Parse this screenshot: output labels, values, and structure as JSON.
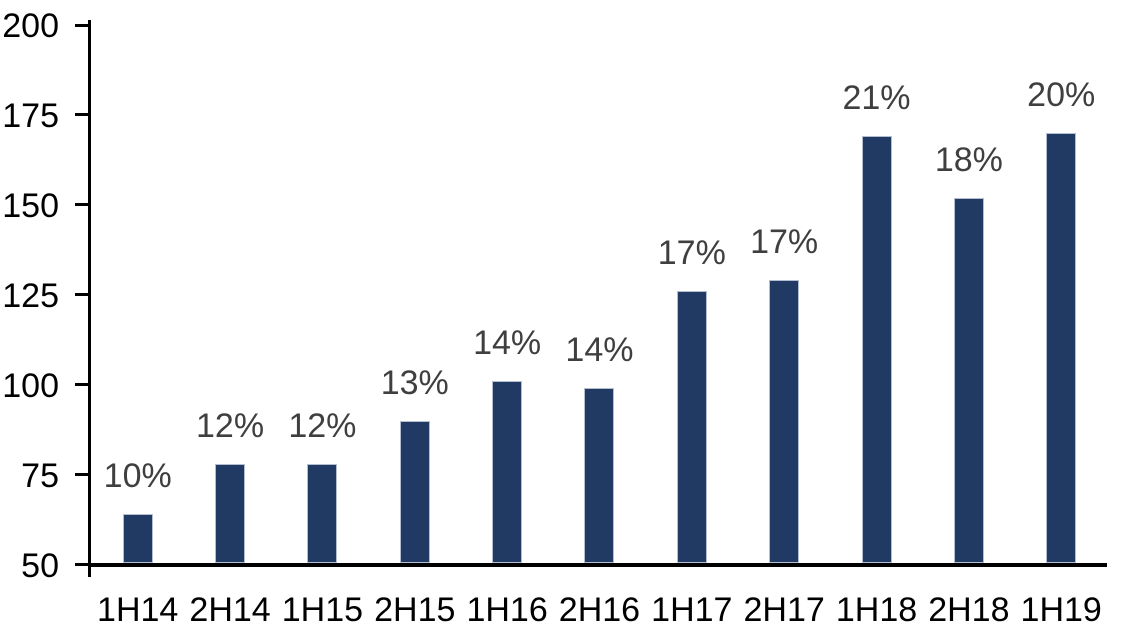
{
  "chart_data": {
    "type": "bar",
    "title": "",
    "xlabel": "",
    "ylabel": "",
    "categories": [
      "1H14",
      "2H14",
      "1H15",
      "2H15",
      "1H16",
      "2H16",
      "1H17",
      "2H17",
      "1H18",
      "2H18",
      "1H19"
    ],
    "values": [
      64,
      78,
      78,
      90,
      101,
      99,
      126,
      129,
      169,
      152,
      170
    ],
    "bar_labels": [
      "10%",
      "12%",
      "12%",
      "13%",
      "14%",
      "14%",
      "17%",
      "17%",
      "21%",
      "18%",
      "20%"
    ],
    "ylim": [
      50,
      200
    ],
    "ytick_step": 25,
    "yticks": [
      "50",
      "75",
      "100",
      "125",
      "150",
      "175",
      "200"
    ],
    "grid": false,
    "legend": null,
    "colors": {
      "bar_fill": "#203a63",
      "bar_border": "#b3bfd0",
      "bar_label_text": "#3f3f3f",
      "axis": "#000000",
      "tick_label_text": "#000000",
      "background": "#ffffff"
    }
  }
}
